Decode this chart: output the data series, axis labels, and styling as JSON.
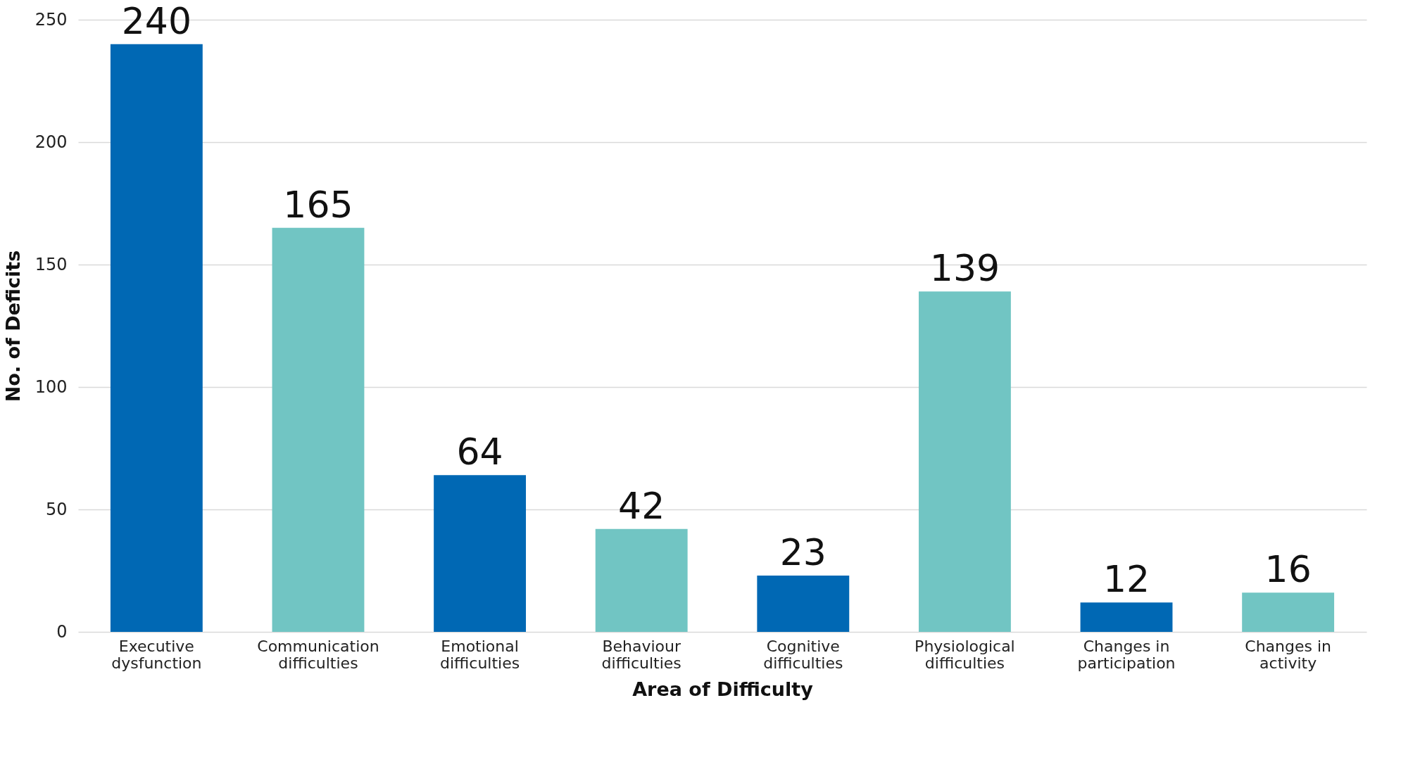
{
  "chart_data": {
    "type": "bar",
    "xlabel": "Area of Difficulty",
    "ylabel": "No. of Deficits",
    "categories": [
      "Executive dysfunction",
      "Communication difficulties",
      "Emotional difficulties",
      "Behaviour difficulties",
      "Cognitive difficulties",
      "Physiological difficulties",
      "Changes in participation",
      "Changes in activity"
    ],
    "values": [
      240,
      165,
      64,
      42,
      23,
      139,
      12,
      16
    ],
    "colors": [
      "#0068b4",
      "#71c5c3",
      "#0068b4",
      "#71c5c3",
      "#0068b4",
      "#71c5c3",
      "#0068b4",
      "#71c5c3"
    ],
    "ylim": [
      0,
      250
    ],
    "yticks": [
      0,
      50,
      100,
      150,
      200,
      250
    ],
    "grid": "y",
    "data_labels": true
  }
}
